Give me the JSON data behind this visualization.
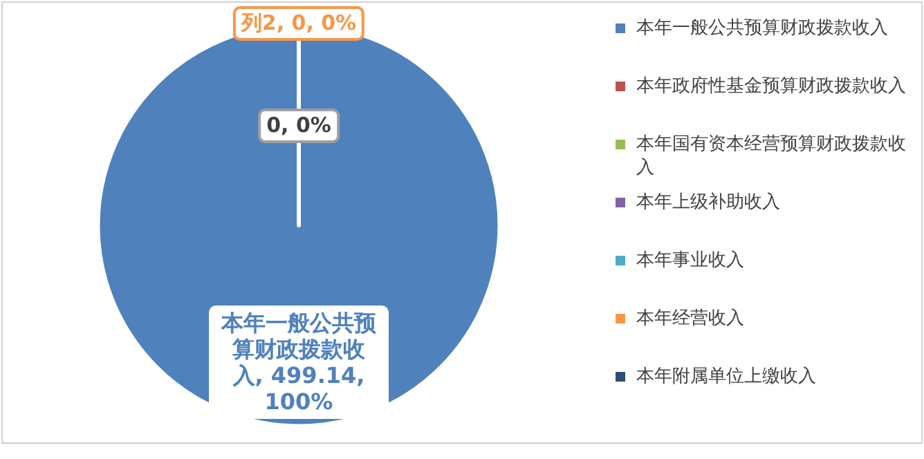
{
  "chart_data": {
    "type": "pie",
    "categories": [
      "本年一般公共预算财政拨款收入",
      "本年政府性基金预算财政拨款收入",
      "本年国有资本经营预算财政拨款收入",
      "本年上级补助收入",
      "本年事业收入",
      "本年经营收入",
      "本年附属单位上缴收入"
    ],
    "values": [
      499.14,
      0,
      0,
      0,
      0,
      0,
      0
    ],
    "colors": [
      "#4f81bd",
      "#c0504d",
      "#9bbb59",
      "#8064a2",
      "#4bacc6",
      "#f79646",
      "#2c4d75"
    ],
    "value_labels": [
      "本年一般公共预算财政拨款收入, 499.14, 100%",
      null,
      null,
      null,
      null,
      "列2, 0, 0%",
      "0, 0%"
    ],
    "legend": "right"
  }
}
